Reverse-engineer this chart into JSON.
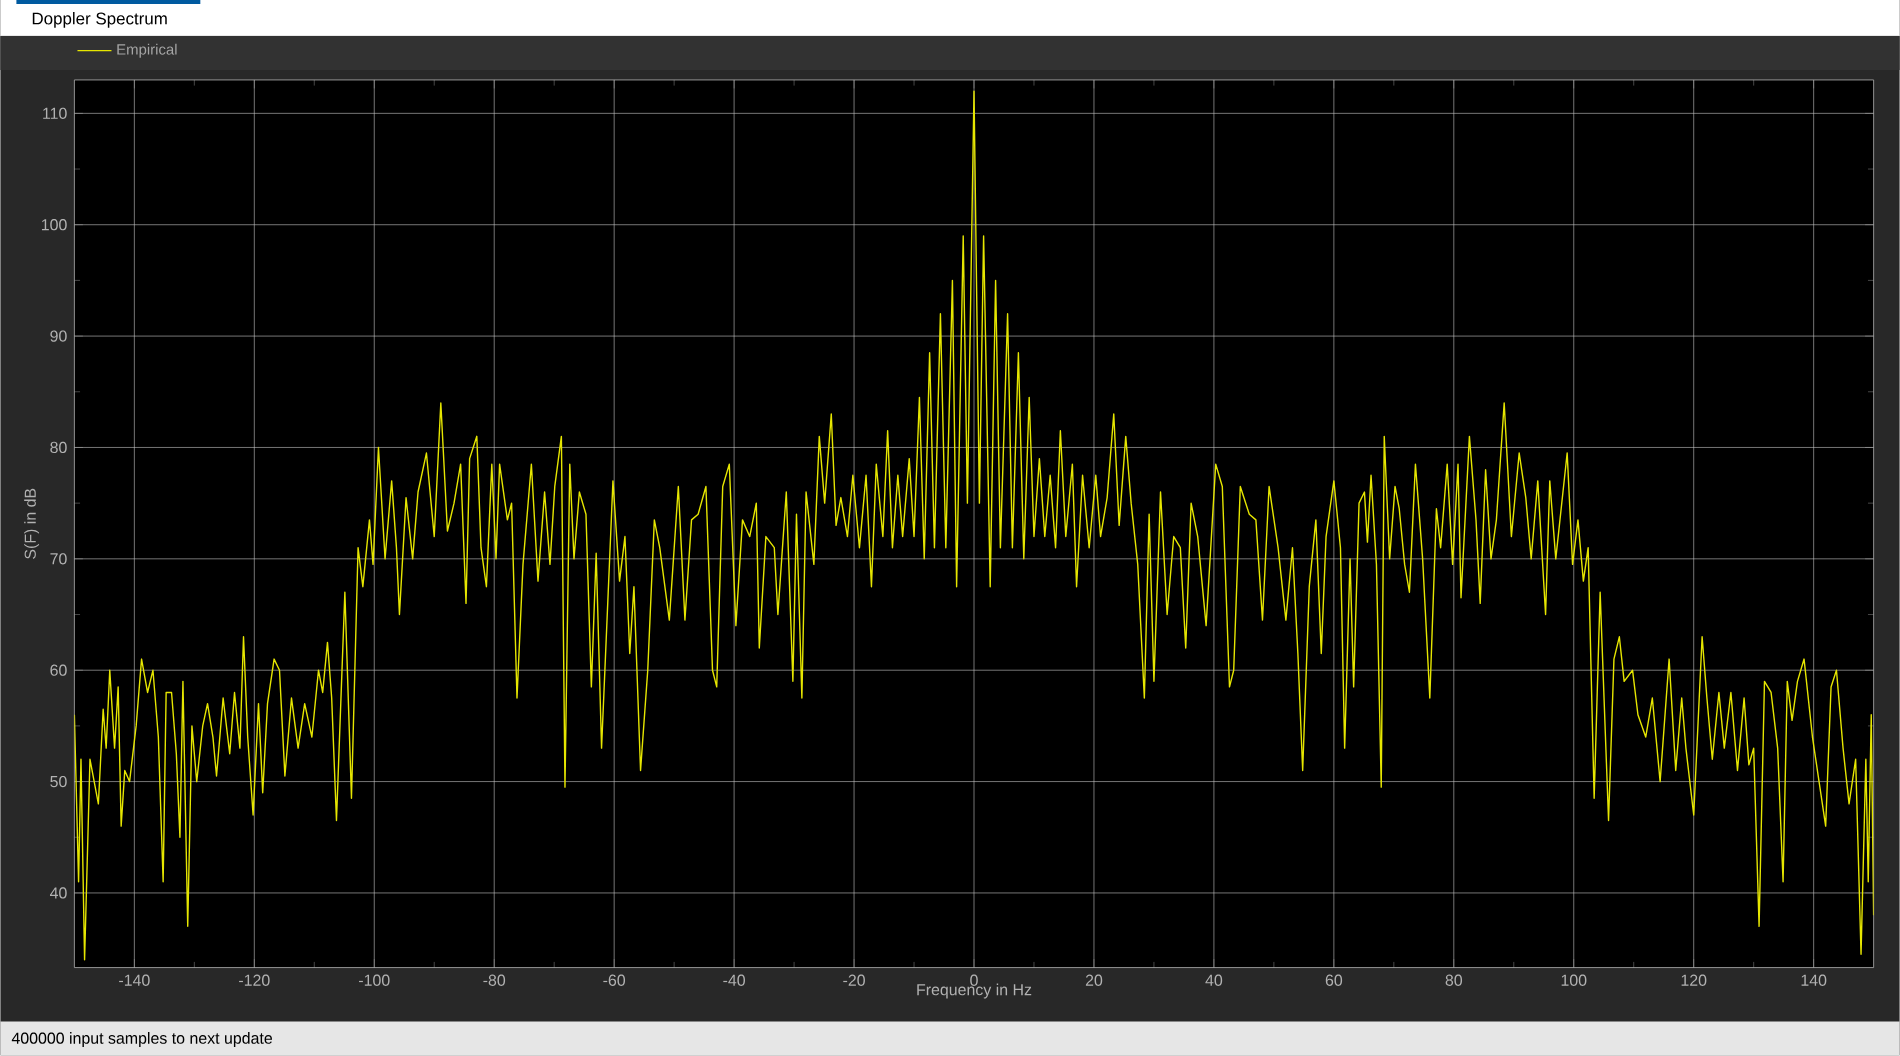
{
  "chart_data": {
    "type": "line",
    "title": "Doppler Spectrum",
    "xlabel": "Frequency in Hz",
    "ylabel": "S(F) in dB",
    "annotations": [
      "400000 input samples to next update"
    ],
    "xlim": [
      -150,
      150
    ],
    "ylim": [
      33.3,
      113
    ],
    "xticks": [
      -140,
      -120,
      -100,
      -80,
      -60,
      -40,
      -20,
      0,
      20,
      40,
      60,
      80,
      100,
      120,
      140
    ],
    "yticks": [
      40,
      50,
      60,
      70,
      80,
      90,
      100,
      110
    ],
    "grid": true,
    "legend": "top left",
    "series": [
      {
        "name": "Empirical",
        "color": "#e6e600",
        "x": [
          -150,
          -149.3,
          -148.9,
          -148.3,
          -147.4,
          -146,
          -145.2,
          -144.7,
          -144.1,
          -143.3,
          -142.7,
          -142.2,
          -141.6,
          -140.8,
          -139.7,
          -138.8,
          -137.8,
          -136.9,
          -136,
          -135.2,
          -134.7,
          -133.8,
          -133,
          -132.4,
          -131.9,
          -131.1,
          -130.4,
          -129.6,
          -128.6,
          -127.8,
          -126.9,
          -126.3,
          -125.2,
          -124.1,
          -123.3,
          -122.4,
          -121.8,
          -121.1,
          -120.2,
          -119.3,
          -118.6,
          -117.8,
          -116.7,
          -115.8,
          -114.9,
          -113.8,
          -112.7,
          -111.6,
          -110.4,
          -109.3,
          -108.6,
          -107.8,
          -107.1,
          -106.3,
          -104.9,
          -103.8,
          -102.7,
          -101.9,
          -100.8,
          -100.2,
          -99.3,
          -98.2,
          -97.1,
          -96.3,
          -95.8,
          -94.7,
          -93.6,
          -92.7,
          -91.3,
          -90,
          -88.9,
          -87.8,
          -86.7,
          -85.6,
          -84.7,
          -84.1,
          -82.9,
          -82.2,
          -81.3,
          -80.4,
          -79.7,
          -79.1,
          -77.8,
          -77.1,
          -76.2,
          -75.2,
          -73.8,
          -72.7,
          -71.6,
          -70.7,
          -69.9,
          -68.8,
          -68.2,
          -67.4,
          -66.7,
          -65.8,
          -64.7,
          -63.8,
          -63,
          -62.1,
          -60.2,
          -59.1,
          -58.2,
          -57.4,
          -56.7,
          -55.6,
          -54.4,
          -53.3,
          -52.4,
          -50.8,
          -49.3,
          -48.2,
          -47.1,
          -46,
          -44.7,
          -43.6,
          -42.9,
          -41.9,
          -40.8,
          -39.7,
          -38.6,
          -37.4,
          -36.3,
          -35.8,
          -34.7,
          -33.3,
          -32.7,
          -31.3,
          -30.2,
          -29.6,
          -28.7,
          -28,
          -26.7,
          -25.8,
          -24.9,
          -23.8,
          -23,
          -22.2,
          -21.1,
          -20.2,
          -19.1,
          -18,
          -17.1,
          -16.3,
          -15.2,
          -14.4,
          -13.6,
          -12.7,
          -11.9,
          -10.8,
          -10,
          -9.1,
          -8.3,
          -7.4,
          -6.6,
          -5.6,
          -4.7,
          -3.6,
          -2.9,
          -1.8,
          -1.1,
          0,
          0.9,
          1.6,
          2.7,
          3.6,
          4.4,
          5.6,
          6.4,
          7.4,
          8.3,
          9.2,
          10,
          10.9,
          11.8,
          12.7,
          13.6,
          14.4,
          15.3,
          16.4,
          17.1,
          18.1,
          19.2,
          20.3,
          21.1,
          22.2,
          23.3,
          24.2,
          25.3,
          26.2,
          27.3,
          28.4,
          29.2,
          30,
          31.1,
          32.2,
          33.3,
          34.4,
          35.3,
          36.2,
          37.3,
          38.7,
          40.3,
          41.4,
          42.6,
          43.3,
          44.4,
          45.9,
          47,
          48.1,
          49.2,
          50.7,
          52,
          53.1,
          54,
          54.8,
          55.9,
          57,
          57.9,
          58.7,
          60,
          61.1,
          61.8,
          62.7,
          63.3,
          64.2,
          65.1,
          65.6,
          66.2,
          67.1,
          67.9,
          68.4,
          69.3,
          70.2,
          70.9,
          71.8,
          72.6,
          73.6,
          74.8,
          76,
          77.1,
          77.8,
          78.9,
          79.8,
          80.7,
          81.2,
          82.6,
          83.7,
          84.4,
          85.3,
          86.2,
          87.1,
          88.4,
          89.6,
          90.9,
          92,
          92.9,
          94,
          95.3,
          96,
          97,
          98.9,
          99.8,
          100.7,
          101.6,
          102.4,
          103.4,
          104.4,
          105.8,
          106.7,
          107.6,
          108.4,
          109.8,
          110.7,
          112,
          113.1,
          114.4,
          115.9,
          117,
          118,
          118.7,
          120,
          121.4,
          122.2,
          123.1,
          124.2,
          125.1,
          126.2,
          127.3,
          128.4,
          129.2,
          130,
          130.9,
          131.8,
          132.9,
          134,
          134.9,
          135.6,
          136.4,
          137.3,
          138.4,
          139.8,
          140.9,
          142,
          142.9,
          143.8,
          144.9,
          145.9,
          147,
          147.9,
          148.7,
          149.1,
          149.6,
          150
        ],
        "values": [
          56,
          41,
          52,
          34,
          52,
          48,
          56.5,
          53,
          60,
          53,
          58.5,
          46,
          51,
          50,
          55,
          61,
          58,
          60,
          54,
          41,
          58,
          58,
          52.5,
          45,
          59,
          37,
          55,
          50,
          55,
          57,
          54,
          50.5,
          57.5,
          52.5,
          58,
          53,
          63,
          54,
          47,
          57,
          49,
          57,
          61,
          60,
          50.5,
          57.5,
          53,
          57,
          54,
          60,
          58,
          62.5,
          57.5,
          46.5,
          67,
          48.5,
          71,
          67.5,
          73.5,
          69.5,
          80,
          70,
          77,
          71,
          65,
          75.5,
          70,
          76,
          79.5,
          72,
          84,
          72.5,
          75,
          78.5,
          66,
          79,
          81,
          71,
          67.5,
          78.5,
          70,
          78.5,
          73.5,
          75,
          57.5,
          69.5,
          78.5,
          68,
          76,
          69.5,
          76.5,
          81,
          49.5,
          78.5,
          70,
          76,
          74,
          58.5,
          70.5,
          53,
          77,
          68,
          72,
          61.5,
          67.5,
          51,
          60,
          73.5,
          71,
          64.5,
          76.5,
          64.5,
          73.5,
          74,
          76.5,
          60,
          58.5,
          76.5,
          78.5,
          64,
          73.5,
          72,
          75,
          62,
          72,
          71,
          65,
          76,
          59,
          74,
          57.5,
          76,
          69.5,
          81,
          75,
          83,
          73,
          75.5,
          72,
          77.5,
          71,
          77.5,
          67.5,
          78.5,
          72,
          81.5,
          71,
          77.5,
          72,
          79,
          72,
          84.5,
          70,
          88.5,
          71,
          92,
          71,
          95,
          67.5,
          99,
          75,
          112,
          75,
          99,
          67.5,
          95,
          71,
          92,
          71,
          88.5,
          70,
          84.5,
          72,
          79,
          72,
          77.5,
          71,
          81.5,
          72,
          78.5,
          67.5,
          77.5,
          71,
          77.5,
          72,
          75.5,
          83,
          73,
          81,
          75,
          69.5,
          57.5,
          74,
          59,
          76,
          65,
          72,
          71,
          62,
          75,
          72,
          64,
          78.5,
          76.5,
          58.5,
          60,
          76.5,
          74,
          73.5,
          64.5,
          76.5,
          71,
          64.5,
          71,
          61.5,
          51,
          67.5,
          73.5,
          61.5,
          72,
          77,
          71,
          53,
          70,
          58.5,
          75,
          76,
          71.5,
          77.5,
          69.5,
          49.5,
          81,
          70,
          76.5,
          74.5,
          69.5,
          67,
          78.5,
          70,
          57.5,
          74.5,
          71,
          78.5,
          69.5,
          78.5,
          66.5,
          81,
          73.5,
          66,
          78,
          70,
          73.5,
          84,
          72,
          79.5,
          75.5,
          70,
          77,
          65,
          77,
          70,
          79.5,
          69.5,
          73.5,
          68,
          71,
          48.5,
          67,
          46.5,
          61,
          63,
          59,
          60,
          56,
          54,
          57.5,
          50,
          61,
          51,
          57.5,
          53,
          47,
          63,
          57.5,
          52,
          58,
          53,
          58,
          51,
          57.5,
          51.5,
          53,
          37,
          59,
          58,
          53,
          41,
          59,
          55.5,
          59,
          61,
          54,
          50,
          46,
          58.5,
          60,
          53,
          48,
          52,
          34.5,
          52,
          41,
          56,
          38
        ]
      }
    ]
  }
}
